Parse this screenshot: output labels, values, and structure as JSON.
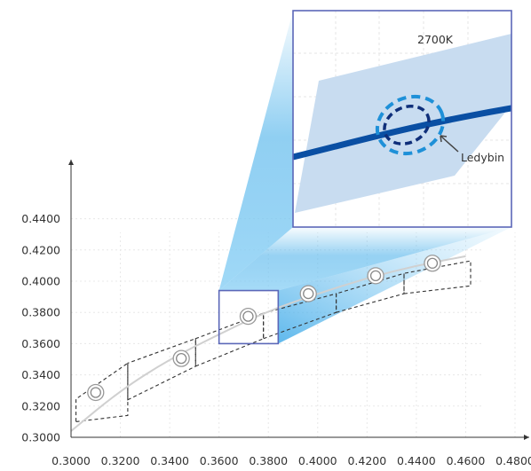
{
  "chart_data": {
    "type": "scatter",
    "title": "",
    "xlabel": "",
    "ylabel": "",
    "xlim": [
      0.3,
      0.48
    ],
    "ylim": [
      0.3,
      0.45
    ],
    "x_ticks": [
      "0.3000",
      "0.3200",
      "0.3400",
      "0.3600",
      "0.3800",
      "0.4000",
      "0.4200",
      "0.4400",
      "0.4600",
      "0.4800"
    ],
    "y_ticks": [
      "0.3000",
      "0.3200",
      "0.3400",
      "0.3600",
      "0.3800",
      "0.4000",
      "0.4200",
      "0.4400"
    ],
    "grid": true,
    "curve_points": [
      {
        "x": 0.3,
        "y": 0.304
      },
      {
        "x": 0.32,
        "y": 0.33
      },
      {
        "x": 0.34,
        "y": 0.35
      },
      {
        "x": 0.36,
        "y": 0.366
      },
      {
        "x": 0.38,
        "y": 0.381
      },
      {
        "x": 0.4,
        "y": 0.392
      },
      {
        "x": 0.42,
        "y": 0.402
      },
      {
        "x": 0.44,
        "y": 0.41
      },
      {
        "x": 0.46,
        "y": 0.416
      }
    ],
    "points": [
      {
        "x": 0.31,
        "y": 0.3287
      },
      {
        "x": 0.3447,
        "y": 0.3505
      },
      {
        "x": 0.3718,
        "y": 0.3775
      },
      {
        "x": 0.3962,
        "y": 0.392
      },
      {
        "x": 0.4235,
        "y": 0.4035
      },
      {
        "x": 0.4465,
        "y": 0.4115
      }
    ],
    "bins": [
      {
        "x0": 0.302,
        "x1": 0.323,
        "bot": [
          0.31,
          0.314
        ],
        "top": [
          0.3245,
          0.3475
        ]
      },
      {
        "x0": 0.323,
        "x1": 0.3505,
        "bot": [
          0.324,
          0.3455
        ],
        "top": [
          0.3475,
          0.3632
        ]
      },
      {
        "x0": 0.3505,
        "x1": 0.378,
        "bot": [
          0.3455,
          0.3632
        ],
        "top": [
          0.3632,
          0.3795
        ]
      },
      {
        "x0": 0.378,
        "x1": 0.4075,
        "bot": [
          0.3632,
          0.38
        ],
        "top": [
          0.3795,
          0.392
        ]
      },
      {
        "x0": 0.4075,
        "x1": 0.435,
        "bot": [
          0.38,
          0.392
        ],
        "top": [
          0.392,
          0.405
        ]
      },
      {
        "x0": 0.435,
        "x1": 0.462,
        "bot": [
          0.392,
          0.397
        ],
        "top": [
          0.405,
          0.413
        ]
      }
    ],
    "zoom_box": {
      "x0": 0.36,
      "x1": 0.384,
      "y0": 0.36,
      "y1": 0.394
    },
    "inset": {
      "label_bin": "2700K",
      "label_point": "Ledybin"
    },
    "colors": {
      "curve_main": "#0a4fa3",
      "curve_ghost": "#cccccc",
      "bin_fill": "#c8dcf0",
      "zoom_border": "#5b67b8",
      "beam": "#5bb8ec",
      "dashed_outer": "#1e90d8",
      "dashed_inner": "#0f2f7a",
      "axis": "#333333",
      "grid": "#e8e8e8"
    }
  }
}
